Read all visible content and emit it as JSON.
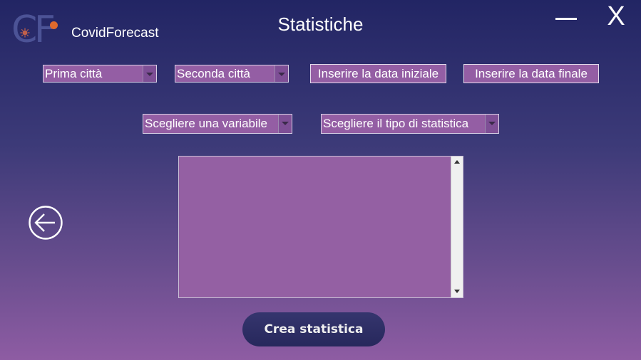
{
  "header": {
    "logo_letters": {
      "c": "C",
      "f": "F"
    },
    "app_name": "CovidForecast",
    "title": "Statistiche",
    "minimize_icon": "minimize-icon",
    "close_label": "X"
  },
  "filters": {
    "city1": "Prima città",
    "city2": "Seconda città",
    "start_date": "Inserire la data iniziale",
    "end_date": "Inserire la data finale",
    "variable": "Scegliere una variabile",
    "stat_type": "Scegliere il tipo di statistica"
  },
  "output": {
    "text": ""
  },
  "back_icon": "arrow-left-circle-icon",
  "create_button": "Crea statistica",
  "colors": {
    "bg_top": "#222564",
    "bg_bottom": "#8e5ca3",
    "field": "#945ea4",
    "button": "#2c2d62",
    "logo": "#4c5396",
    "accent_dot": "#e06a2c"
  }
}
